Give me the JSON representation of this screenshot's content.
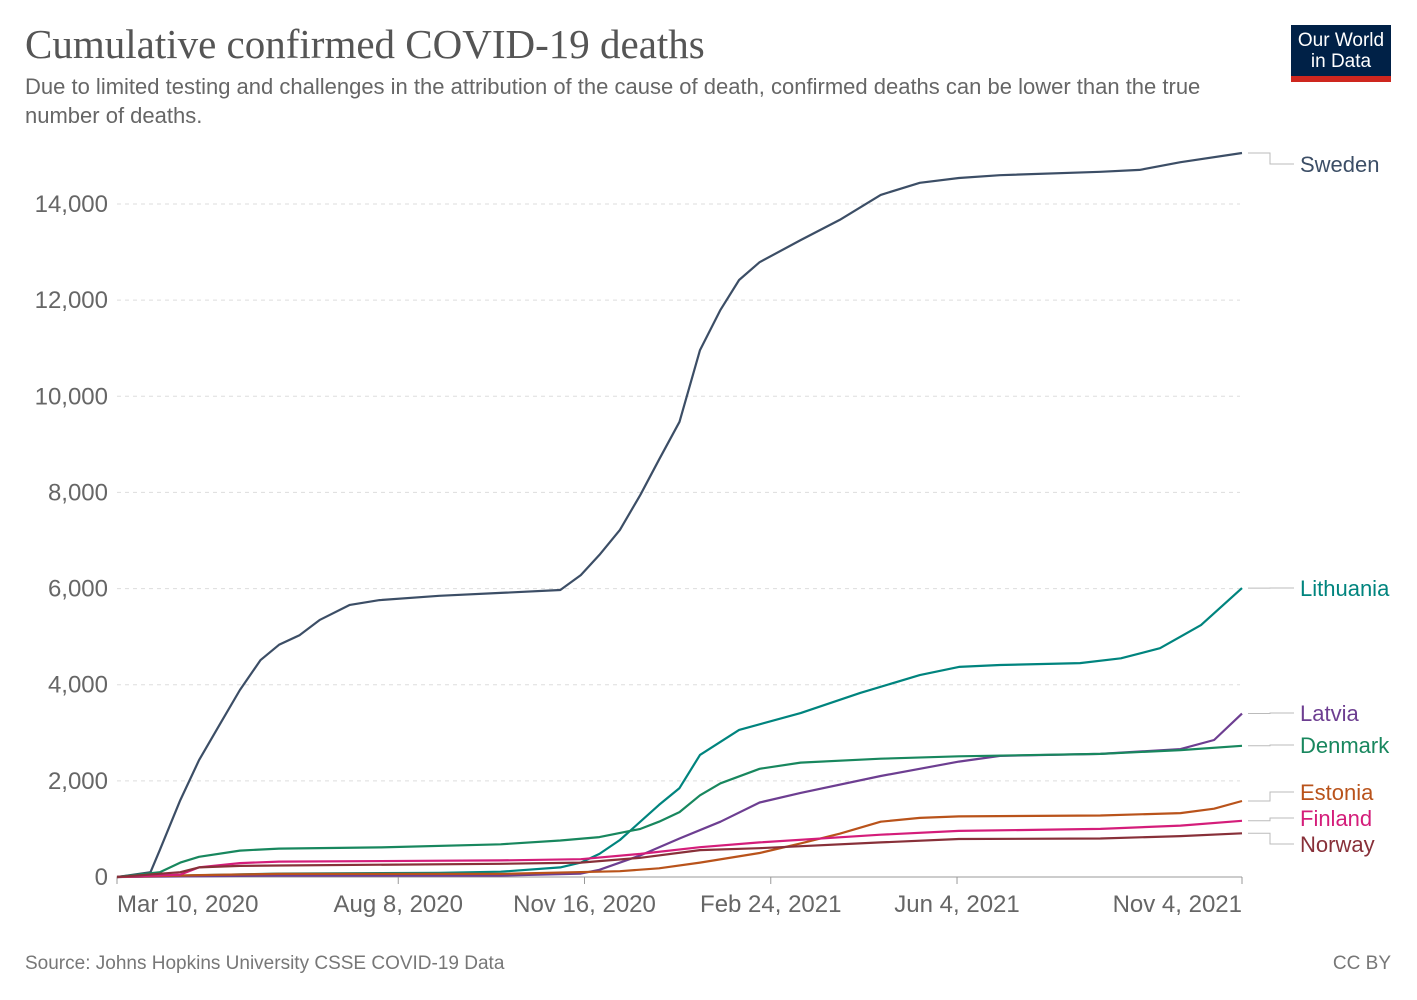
{
  "title": "Cumulative confirmed COVID-19 deaths",
  "subtitle": "Due to limited testing and challenges in the attribution of the cause of death, confirmed deaths can be lower than the true number of deaths.",
  "logo": {
    "line1": "Our World",
    "line2": "in Data",
    "colors": {
      "background": "#002147",
      "accent": "#ce261e"
    }
  },
  "source": "Source: Johns Hopkins University CSSE COVID-19 Data",
  "license": "CC BY",
  "chart_data": {
    "type": "line",
    "title": "Cumulative confirmed COVID-19 deaths",
    "xlabel": "",
    "ylabel": "",
    "xlim": [
      "2020-03-10",
      "2021-11-04"
    ],
    "ylim": [
      0,
      14000
    ],
    "grid": "horizontal-dashed",
    "legend": "right-end-labels",
    "y_ticks": [
      {
        "v": 0,
        "label": "0"
      },
      {
        "v": 2000,
        "label": "2,000"
      },
      {
        "v": 4000,
        "label": "4,000"
      },
      {
        "v": 6000,
        "label": "6,000"
      },
      {
        "v": 8000,
        "label": "8,000"
      },
      {
        "v": 10000,
        "label": "10,000"
      },
      {
        "v": 12000,
        "label": "12,000"
      },
      {
        "v": 14000,
        "label": "14,000"
      }
    ],
    "x_ticks": [
      {
        "d": "2020-03-10",
        "label": "Mar 10, 2020"
      },
      {
        "d": "2020-08-08",
        "label": "Aug 8, 2020"
      },
      {
        "d": "2020-11-16",
        "label": "Nov 16, 2020"
      },
      {
        "d": "2021-02-24",
        "label": "Feb 24, 2021"
      },
      {
        "d": "2021-06-04",
        "label": "Jun 4, 2021"
      },
      {
        "d": "2021-11-04",
        "label": "Nov 4, 2021"
      }
    ],
    "series": [
      {
        "name": "Sweden",
        "color": "#3c4e66",
        "points": [
          [
            "2020-03-10",
            0
          ],
          [
            "2020-03-28",
            100
          ],
          [
            "2020-04-02",
            560
          ],
          [
            "2020-04-13",
            1600
          ],
          [
            "2020-04-23",
            2430
          ],
          [
            "2020-05-04",
            3160
          ],
          [
            "2020-05-15",
            3890
          ],
          [
            "2020-05-26",
            4510
          ],
          [
            "2020-06-05",
            4830
          ],
          [
            "2020-06-16",
            5030
          ],
          [
            "2020-06-27",
            5350
          ],
          [
            "2020-07-13",
            5660
          ],
          [
            "2020-07-29",
            5760
          ],
          [
            "2020-08-30",
            5850
          ],
          [
            "2020-10-02",
            5910
          ],
          [
            "2020-11-03",
            5970
          ],
          [
            "2020-11-14",
            6280
          ],
          [
            "2020-11-24",
            6700
          ],
          [
            "2020-12-05",
            7220
          ],
          [
            "2020-12-16",
            7950
          ],
          [
            "2020-12-26",
            8680
          ],
          [
            "2021-01-06",
            9470
          ],
          [
            "2021-01-17",
            10960
          ],
          [
            "2021-01-28",
            11800
          ],
          [
            "2021-02-07",
            12420
          ],
          [
            "2021-02-18",
            12790
          ],
          [
            "2021-03-12",
            13250
          ],
          [
            "2021-04-02",
            13670
          ],
          [
            "2021-04-24",
            14190
          ],
          [
            "2021-05-15",
            14440
          ],
          [
            "2021-06-05",
            14540
          ],
          [
            "2021-06-27",
            14600
          ],
          [
            "2021-08-20",
            14670
          ],
          [
            "2021-09-10",
            14710
          ],
          [
            "2021-10-02",
            14870
          ],
          [
            "2021-11-04",
            15060
          ]
        ]
      },
      {
        "name": "Lithuania",
        "color": "#00847e",
        "points": [
          [
            "2020-03-10",
            0
          ],
          [
            "2020-04-13",
            30
          ],
          [
            "2020-06-05",
            70
          ],
          [
            "2020-08-30",
            85
          ],
          [
            "2020-10-02",
            110
          ],
          [
            "2020-11-03",
            200
          ],
          [
            "2020-11-14",
            300
          ],
          [
            "2020-11-24",
            480
          ],
          [
            "2020-12-05",
            770
          ],
          [
            "2020-12-26",
            1500
          ],
          [
            "2021-01-06",
            1850
          ],
          [
            "2021-01-17",
            2540
          ],
          [
            "2021-02-07",
            3060
          ],
          [
            "2021-03-12",
            3410
          ],
          [
            "2021-04-13",
            3830
          ],
          [
            "2021-05-15",
            4200
          ],
          [
            "2021-06-05",
            4370
          ],
          [
            "2021-06-27",
            4410
          ],
          [
            "2021-08-09",
            4450
          ],
          [
            "2021-08-31",
            4550
          ],
          [
            "2021-09-21",
            4760
          ],
          [
            "2021-10-13",
            5240
          ],
          [
            "2021-11-04",
            6010
          ]
        ]
      },
      {
        "name": "Latvia",
        "color": "#6d3e91",
        "points": [
          [
            "2020-03-10",
            0
          ],
          [
            "2020-06-05",
            30
          ],
          [
            "2020-10-02",
            30
          ],
          [
            "2020-11-14",
            70
          ],
          [
            "2020-11-24",
            150
          ],
          [
            "2020-12-16",
            450
          ],
          [
            "2021-01-06",
            800
          ],
          [
            "2021-01-28",
            1150
          ],
          [
            "2021-02-18",
            1550
          ],
          [
            "2021-03-12",
            1750
          ],
          [
            "2021-04-24",
            2100
          ],
          [
            "2021-06-05",
            2400
          ],
          [
            "2021-06-27",
            2520
          ],
          [
            "2021-08-20",
            2560
          ],
          [
            "2021-10-02",
            2660
          ],
          [
            "2021-10-20",
            2850
          ],
          [
            "2021-11-04",
            3400
          ]
        ]
      },
      {
        "name": "Denmark",
        "color": "#18875e",
        "points": [
          [
            "2020-03-10",
            0
          ],
          [
            "2020-04-02",
            100
          ],
          [
            "2020-04-13",
            300
          ],
          [
            "2020-04-23",
            420
          ],
          [
            "2020-05-15",
            550
          ],
          [
            "2020-06-05",
            590
          ],
          [
            "2020-07-29",
            615
          ],
          [
            "2020-10-02",
            680
          ],
          [
            "2020-11-03",
            760
          ],
          [
            "2020-11-24",
            830
          ],
          [
            "2020-12-16",
            1000
          ],
          [
            "2020-12-26",
            1150
          ],
          [
            "2021-01-06",
            1350
          ],
          [
            "2021-01-17",
            1700
          ],
          [
            "2021-01-28",
            1950
          ],
          [
            "2021-02-18",
            2250
          ],
          [
            "2021-03-12",
            2380
          ],
          [
            "2021-04-24",
            2460
          ],
          [
            "2021-06-05",
            2510
          ],
          [
            "2021-08-20",
            2560
          ],
          [
            "2021-10-02",
            2640
          ],
          [
            "2021-11-04",
            2730
          ]
        ]
      },
      {
        "name": "Estonia",
        "color": "#b9531b",
        "points": [
          [
            "2020-03-10",
            0
          ],
          [
            "2020-04-23",
            40
          ],
          [
            "2020-06-05",
            65
          ],
          [
            "2020-10-02",
            65
          ],
          [
            "2020-12-05",
            120
          ],
          [
            "2020-12-26",
            180
          ],
          [
            "2021-01-17",
            300
          ],
          [
            "2021-02-18",
            500
          ],
          [
            "2021-03-12",
            700
          ],
          [
            "2021-04-02",
            900
          ],
          [
            "2021-04-24",
            1150
          ],
          [
            "2021-05-15",
            1230
          ],
          [
            "2021-06-05",
            1260
          ],
          [
            "2021-08-20",
            1280
          ],
          [
            "2021-10-02",
            1330
          ],
          [
            "2021-10-20",
            1420
          ],
          [
            "2021-11-04",
            1580
          ]
        ]
      },
      {
        "name": "Finland",
        "color": "#d41d7a",
        "points": [
          [
            "2020-03-10",
            0
          ],
          [
            "2020-04-13",
            50
          ],
          [
            "2020-04-23",
            200
          ],
          [
            "2020-05-15",
            290
          ],
          [
            "2020-06-05",
            320
          ],
          [
            "2020-10-02",
            345
          ],
          [
            "2020-11-14",
            370
          ],
          [
            "2020-12-16",
            480
          ],
          [
            "2021-01-17",
            620
          ],
          [
            "2021-02-18",
            720
          ],
          [
            "2021-04-24",
            880
          ],
          [
            "2021-06-05",
            960
          ],
          [
            "2021-08-20",
            1000
          ],
          [
            "2021-10-02",
            1070
          ],
          [
            "2021-11-04",
            1170
          ]
        ]
      },
      {
        "name": "Norway",
        "color": "#883039",
        "points": [
          [
            "2020-03-10",
            0
          ],
          [
            "2020-04-13",
            100
          ],
          [
            "2020-04-23",
            200
          ],
          [
            "2020-05-15",
            230
          ],
          [
            "2020-06-05",
            240
          ],
          [
            "2020-10-02",
            275
          ],
          [
            "2020-11-14",
            300
          ],
          [
            "2020-12-16",
            400
          ],
          [
            "2021-01-17",
            560
          ],
          [
            "2021-02-18",
            600
          ],
          [
            "2021-04-24",
            720
          ],
          [
            "2021-06-05",
            790
          ],
          [
            "2021-08-20",
            800
          ],
          [
            "2021-10-02",
            850
          ],
          [
            "2021-11-04",
            910
          ]
        ]
      }
    ]
  }
}
